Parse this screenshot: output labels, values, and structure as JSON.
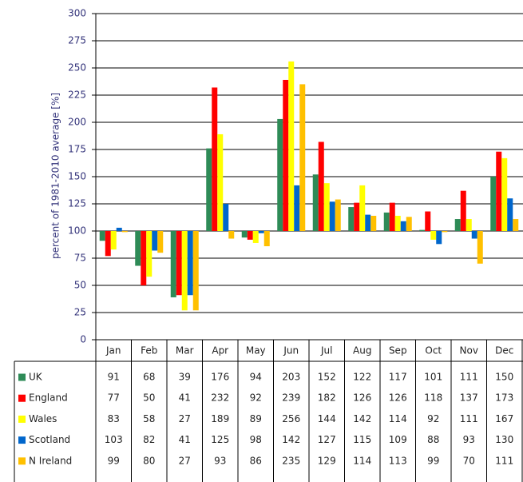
{
  "chart_data": {
    "type": "bar",
    "y_label": "percent of 1981-2010 average [%]",
    "categories": [
      "Jan",
      "Feb",
      "Mar",
      "Apr",
      "May",
      "Jun",
      "Jul",
      "Aug",
      "Sep",
      "Oct",
      "Nov",
      "Dec"
    ],
    "series": [
      {
        "name": "UK",
        "color": "#2e8b57",
        "values": [
          91,
          68,
          39,
          176,
          94,
          203,
          152,
          122,
          117,
          101,
          111,
          150
        ]
      },
      {
        "name": "England",
        "color": "#ff0000",
        "values": [
          77,
          50,
          41,
          232,
          92,
          239,
          182,
          126,
          126,
          118,
          137,
          173
        ]
      },
      {
        "name": "Wales",
        "color": "#ffff00",
        "values": [
          83,
          58,
          27,
          189,
          89,
          256,
          144,
          142,
          114,
          92,
          111,
          167
        ]
      },
      {
        "name": "Scotland",
        "color": "#0066cc",
        "values": [
          103,
          82,
          41,
          125,
          98,
          142,
          127,
          115,
          109,
          88,
          93,
          130
        ]
      },
      {
        "name": "N Ireland",
        "color": "#ffc000",
        "values": [
          99,
          80,
          27,
          93,
          86,
          235,
          129,
          114,
          113,
          99,
          70,
          111
        ]
      }
    ],
    "bar_base": 100,
    "ylim": [
      0,
      300
    ],
    "yticks": [
      0,
      25,
      50,
      75,
      100,
      125,
      150,
      175,
      200,
      225,
      250,
      275,
      300
    ],
    "grid": true
  }
}
